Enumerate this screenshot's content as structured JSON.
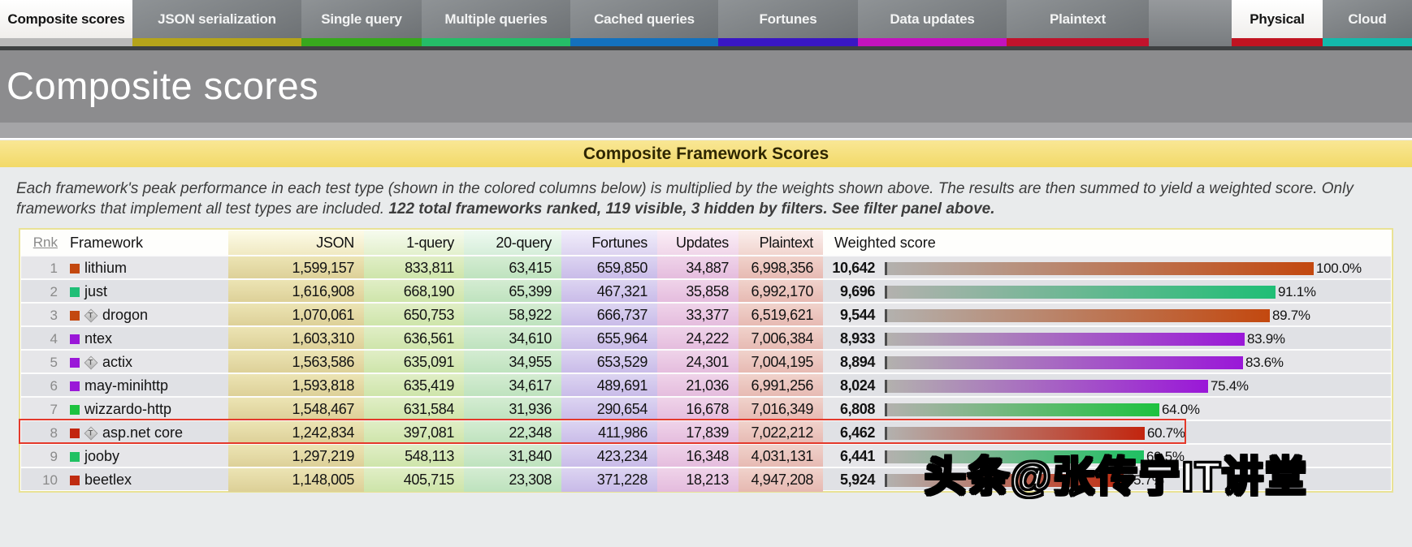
{
  "tabs": [
    {
      "label": "Composite scores",
      "active": true,
      "underline_color": "#b9b9b9"
    },
    {
      "label": "JSON serialization",
      "active": false,
      "underline_color": "#b5a41a"
    },
    {
      "label": "Single query",
      "active": false,
      "underline_color": "#38a81d"
    },
    {
      "label": "Multiple queries",
      "active": false,
      "underline_color": "#25bd68"
    },
    {
      "label": "Cached queries",
      "active": false,
      "underline_color": "#1471bd"
    },
    {
      "label": "Fortunes",
      "active": false,
      "underline_color": "#3917c4"
    },
    {
      "label": "Data updates",
      "active": false,
      "underline_color": "#c313be"
    },
    {
      "label": "Plaintext",
      "active": false,
      "underline_color": "#c1132c"
    },
    {
      "label": "Physical",
      "active": true,
      "underline_color": "#c01421"
    },
    {
      "label": "Cloud",
      "active": false,
      "underline_color": "#14b9ab"
    }
  ],
  "page_title": "Composite scores",
  "banner": "Composite Framework Scores",
  "description": {
    "normal": "Each framework's peak performance in each test type (shown in the colored columns below) is multiplied by the weights shown above. The results are then summed to yield a weighted score. Only frameworks that implement all test types are included.",
    "bold": "122 total frameworks ranked, 119 visible, 3 hidden by filters. See filter panel above."
  },
  "table": {
    "headers": [
      "Rnk",
      "Framework",
      "JSON",
      "1-query",
      "20-query",
      "Fortunes",
      "Updates",
      "Plaintext",
      "Weighted score"
    ],
    "column_colors": {
      "json": {
        "header": "#f0e9c2",
        "top": "#ece4b4",
        "bottom": "#dccf96"
      },
      "q1": {
        "header": "#e3f0cd",
        "top": "#e0eec6",
        "bottom": "#cde4a9"
      },
      "q20": {
        "header": "#d6eeda",
        "top": "#d4ecd2",
        "bottom": "#bde2bd"
      },
      "fortunes": {
        "header": "#ddd4f0",
        "top": "#dcd4f1",
        "bottom": "#c8bae8"
      },
      "updates": {
        "header": "#f0d6e9",
        "top": "#efd3e9",
        "bottom": "#e4bbdd"
      },
      "plaintext": {
        "header": "#f1d5cf",
        "top": "#f0d2cb",
        "bottom": "#e6b8b1"
      }
    },
    "rows": [
      {
        "rank": "1",
        "name": "lithium",
        "verified": false,
        "color": "#c3480f",
        "json": "1,599,157",
        "one_query": "833,811",
        "twenty_query": "63,415",
        "fortunes": "659,850",
        "updates": "34,887",
        "plaintext": "6,998,356",
        "weighted": "10,642",
        "percent": "100.0%",
        "highlighted": false
      },
      {
        "rank": "2",
        "name": "just",
        "verified": false,
        "color": "#1fbe76",
        "json": "1,616,908",
        "one_query": "668,190",
        "twenty_query": "65,399",
        "fortunes": "467,321",
        "updates": "35,858",
        "plaintext": "6,992,170",
        "weighted": "9,696",
        "percent": "91.1%",
        "highlighted": false
      },
      {
        "rank": "3",
        "name": "drogon",
        "verified": true,
        "color": "#c3480f",
        "json": "1,070,061",
        "one_query": "650,753",
        "twenty_query": "58,922",
        "fortunes": "666,737",
        "updates": "33,377",
        "plaintext": "6,519,621",
        "weighted": "9,544",
        "percent": "89.7%",
        "highlighted": false
      },
      {
        "rank": "4",
        "name": "ntex",
        "verified": false,
        "color": "#9a17d8",
        "json": "1,603,310",
        "one_query": "636,561",
        "twenty_query": "34,610",
        "fortunes": "655,964",
        "updates": "24,222",
        "plaintext": "7,006,384",
        "weighted": "8,933",
        "percent": "83.9%",
        "highlighted": false
      },
      {
        "rank": "5",
        "name": "actix",
        "verified": true,
        "color": "#9a17d8",
        "json": "1,563,586",
        "one_query": "635,091",
        "twenty_query": "34,955",
        "fortunes": "653,529",
        "updates": "24,301",
        "plaintext": "7,004,195",
        "weighted": "8,894",
        "percent": "83.6%",
        "highlighted": false
      },
      {
        "rank": "6",
        "name": "may-minihttp",
        "verified": false,
        "color": "#9a17d8",
        "json": "1,593,818",
        "one_query": "635,419",
        "twenty_query": "34,617",
        "fortunes": "489,691",
        "updates": "21,036",
        "plaintext": "6,991,256",
        "weighted": "8,024",
        "percent": "75.4%",
        "highlighted": false
      },
      {
        "rank": "7",
        "name": "wizzardo-http",
        "verified": false,
        "color": "#1dc23f",
        "json": "1,548,467",
        "one_query": "631,584",
        "twenty_query": "31,936",
        "fortunes": "290,654",
        "updates": "16,678",
        "plaintext": "7,016,349",
        "weighted": "6,808",
        "percent": "64.0%",
        "highlighted": false
      },
      {
        "rank": "8",
        "name": "asp.net core",
        "verified": true,
        "color": "#c2250e",
        "json": "1,242,834",
        "one_query": "397,081",
        "twenty_query": "22,348",
        "fortunes": "411,986",
        "updates": "17,839",
        "plaintext": "7,022,212",
        "weighted": "6,462",
        "percent": "60.7%",
        "highlighted": true
      },
      {
        "rank": "9",
        "name": "jooby",
        "verified": false,
        "color": "#1fc162",
        "json": "1,297,219",
        "one_query": "548,113",
        "twenty_query": "31,840",
        "fortunes": "423,234",
        "updates": "16,348",
        "plaintext": "4,031,131",
        "weighted": "6,441",
        "percent": "60.5%",
        "highlighted": false
      },
      {
        "rank": "10",
        "name": "beetlex",
        "verified": false,
        "color": "#bf2b10",
        "json": "1,148,005",
        "one_query": "405,715",
        "twenty_query": "23,308",
        "fortunes": "371,228",
        "updates": "18,213",
        "plaintext": "4,947,208",
        "weighted": "5,924",
        "percent": "55.7%",
        "highlighted": false
      }
    ]
  },
  "watermark": "头条@张传宁IT讲堂",
  "colors": {
    "highlight_box": "#e4392b",
    "banner_bg": "#f6e07f",
    "header_gray": "#8c8c8e",
    "bar_gradient_start": "#b3b1ae"
  }
}
